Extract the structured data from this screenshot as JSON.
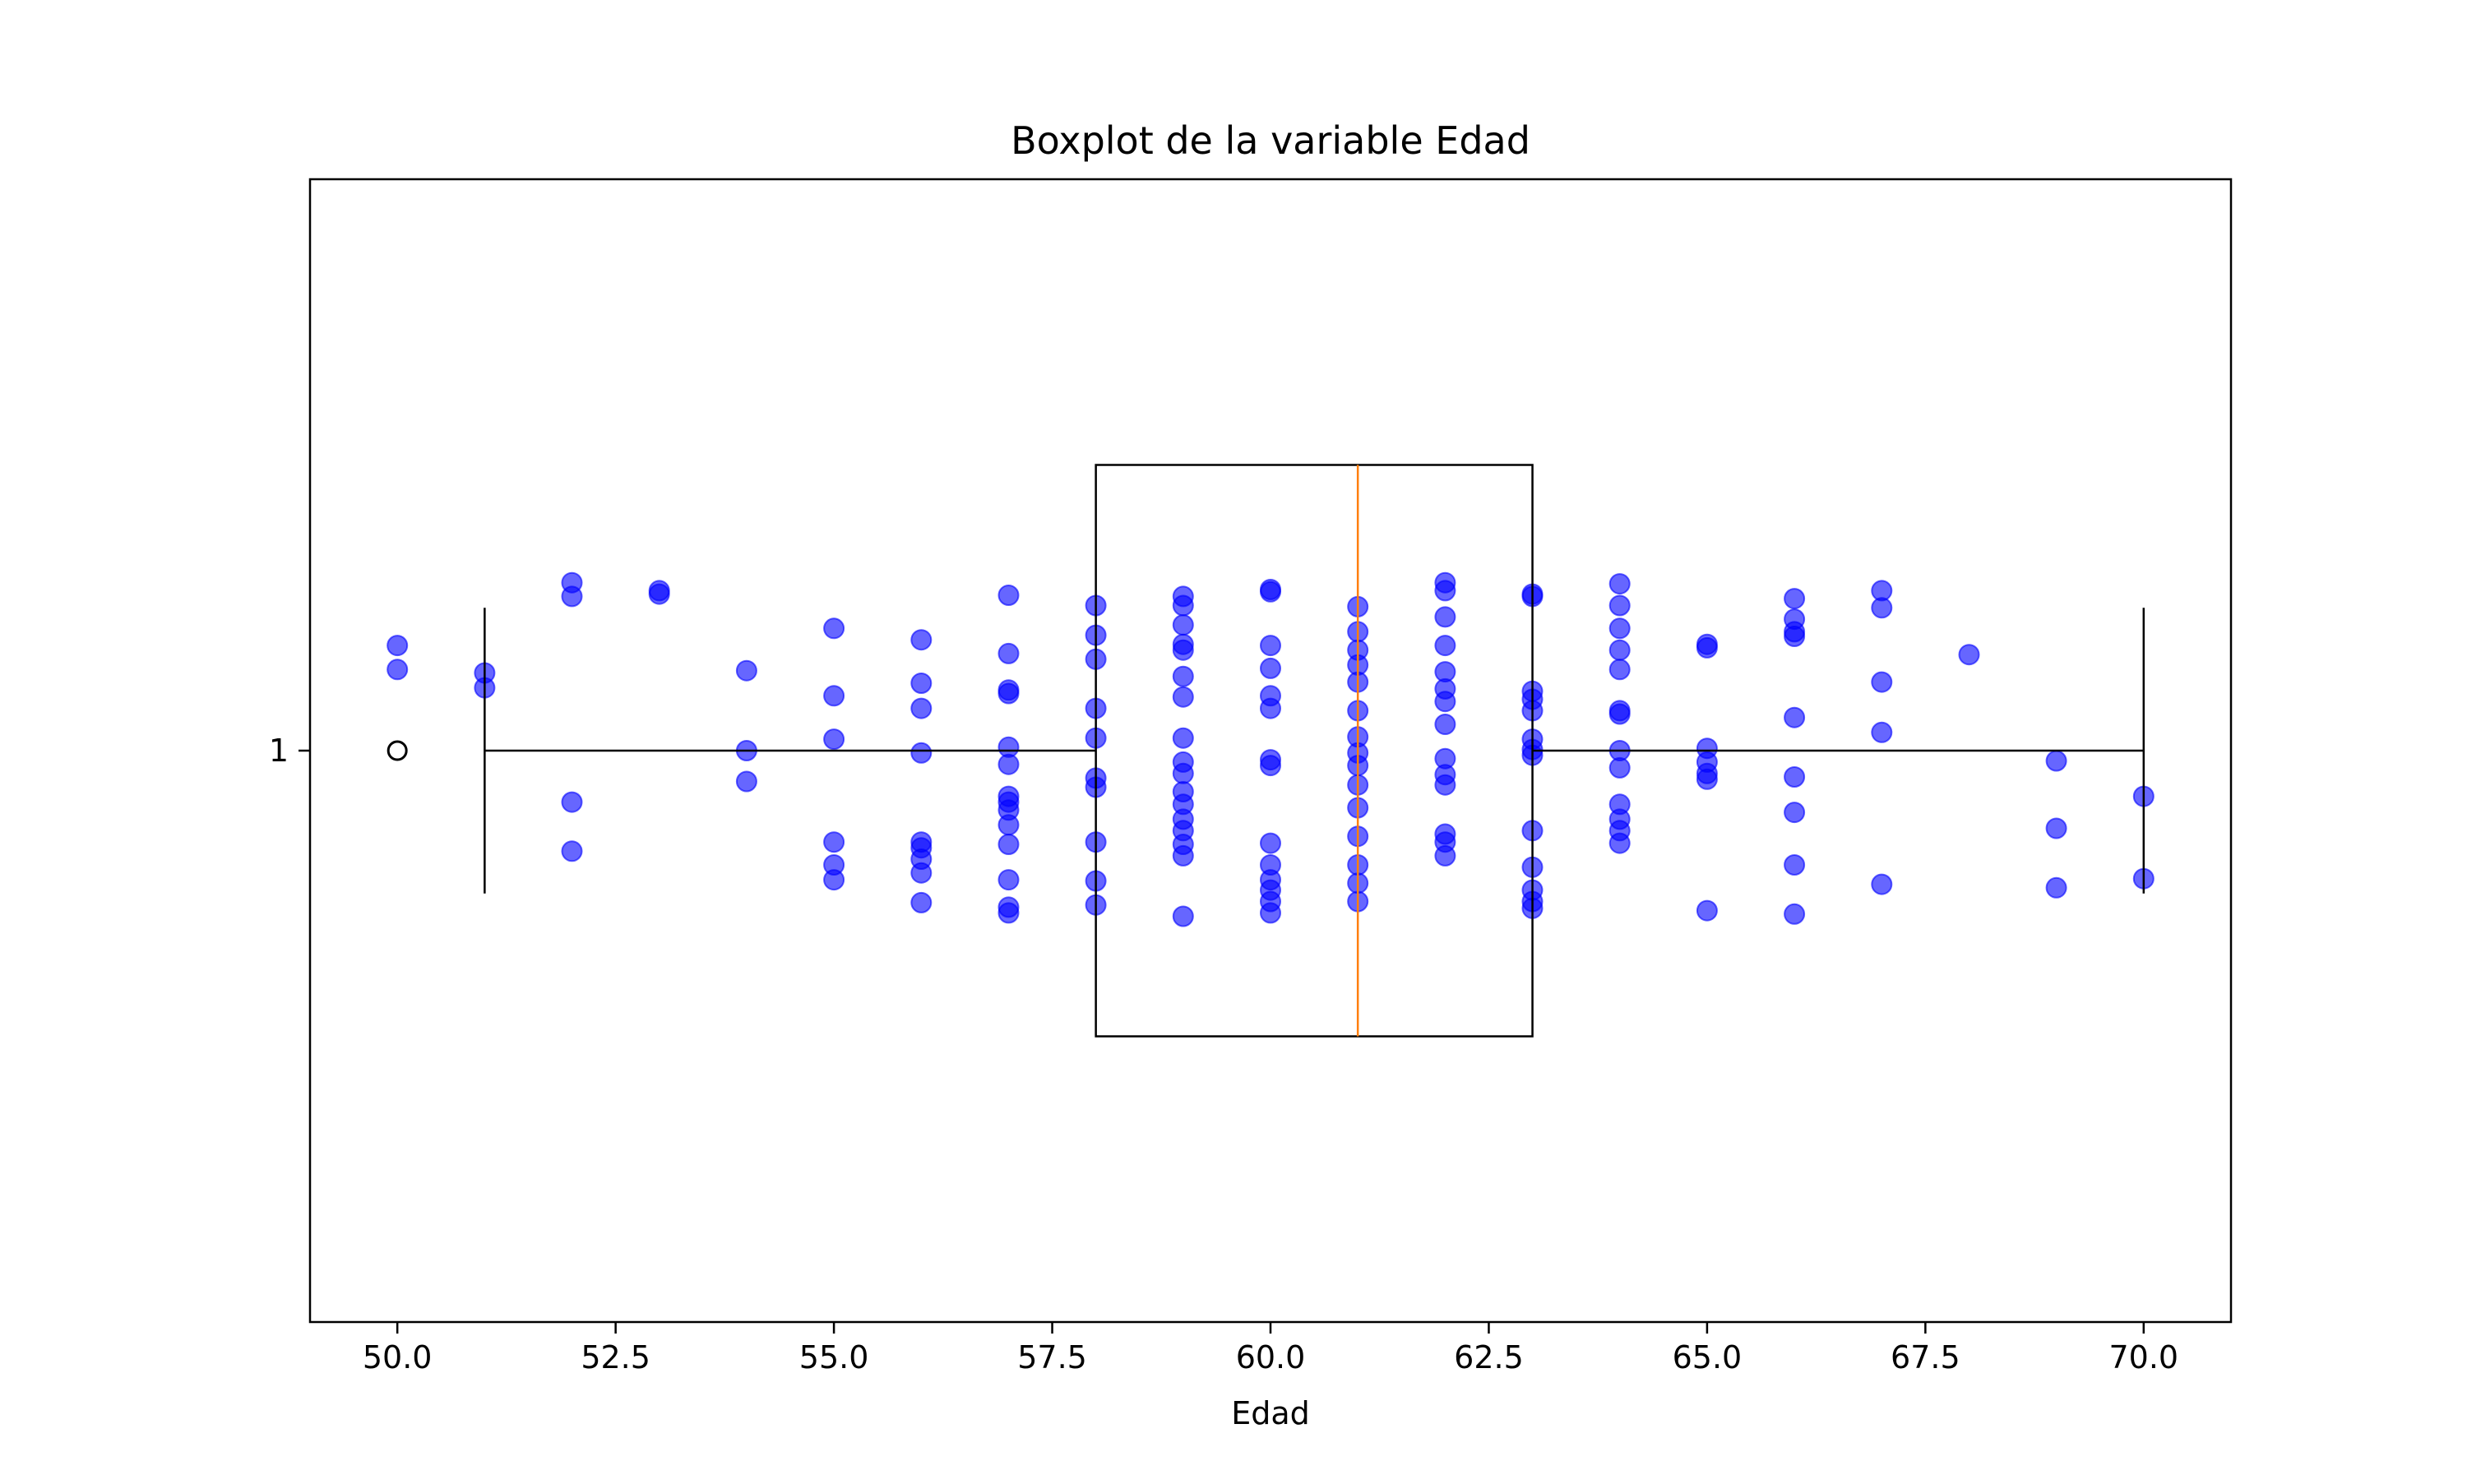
{
  "chart_data": {
    "type": "boxplot",
    "title": "Boxplot de la variable Edad",
    "xlabel": "Edad",
    "ylabel": "",
    "orientation": "horizontal",
    "xlim": [
      49.0,
      71.0
    ],
    "ylim": [
      0.5,
      1.5
    ],
    "x_ticks": [
      50.0,
      52.5,
      55.0,
      57.5,
      60.0,
      62.5,
      65.0,
      67.5,
      70.0
    ],
    "x_tick_labels": [
      "50.0",
      "52.5",
      "55.0",
      "57.5",
      "60.0",
      "62.5",
      "65.0",
      "67.5",
      "70.0"
    ],
    "y_ticks": [
      1
    ],
    "y_tick_labels": [
      "1"
    ],
    "grid": false,
    "colors": {
      "points": "#0000ff",
      "median": "#ff7f0e",
      "box": "#000000"
    },
    "box": {
      "position": 1,
      "whisker_low": 51,
      "q1": 58,
      "median": 61,
      "q3": 63,
      "whisker_high": 70,
      "outliers": [
        50
      ]
    },
    "points": [
      {
        "x": 50,
        "y": 1.092
      },
      {
        "x": 50,
        "y": 1.071
      },
      {
        "x": 51,
        "y": 1.068
      },
      {
        "x": 51,
        "y": 1.055
      },
      {
        "x": 52,
        "y": 1.147
      },
      {
        "x": 52,
        "y": 1.135
      },
      {
        "x": 52,
        "y": 0.955
      },
      {
        "x": 52,
        "y": 0.912
      },
      {
        "x": 53,
        "y": 1.14
      },
      {
        "x": 53,
        "y": 1.137
      },
      {
        "x": 54,
        "y": 1.07
      },
      {
        "x": 54,
        "y": 1.0
      },
      {
        "x": 54,
        "y": 0.973
      },
      {
        "x": 55,
        "y": 1.107
      },
      {
        "x": 55,
        "y": 1.048
      },
      {
        "x": 55,
        "y": 1.01
      },
      {
        "x": 55,
        "y": 0.92
      },
      {
        "x": 55,
        "y": 0.9
      },
      {
        "x": 55,
        "y": 0.887
      },
      {
        "x": 56,
        "y": 1.097
      },
      {
        "x": 56,
        "y": 1.059
      },
      {
        "x": 56,
        "y": 1.037
      },
      {
        "x": 56,
        "y": 0.998
      },
      {
        "x": 56,
        "y": 0.92
      },
      {
        "x": 56,
        "y": 0.915
      },
      {
        "x": 56,
        "y": 0.905
      },
      {
        "x": 56,
        "y": 0.893
      },
      {
        "x": 56,
        "y": 0.867
      },
      {
        "x": 57,
        "y": 1.136
      },
      {
        "x": 57,
        "y": 1.085
      },
      {
        "x": 57,
        "y": 1.053
      },
      {
        "x": 57,
        "y": 1.05
      },
      {
        "x": 57,
        "y": 1.003
      },
      {
        "x": 57,
        "y": 0.988
      },
      {
        "x": 57,
        "y": 0.96
      },
      {
        "x": 57,
        "y": 0.955
      },
      {
        "x": 57,
        "y": 0.948
      },
      {
        "x": 57,
        "y": 0.935
      },
      {
        "x": 57,
        "y": 0.918
      },
      {
        "x": 57,
        "y": 0.887
      },
      {
        "x": 57,
        "y": 0.863
      },
      {
        "x": 57,
        "y": 0.858
      },
      {
        "x": 58,
        "y": 1.127
      },
      {
        "x": 58,
        "y": 1.101
      },
      {
        "x": 58,
        "y": 1.08
      },
      {
        "x": 58,
        "y": 1.037
      },
      {
        "x": 58,
        "y": 1.011
      },
      {
        "x": 58,
        "y": 0.976
      },
      {
        "x": 58,
        "y": 0.968
      },
      {
        "x": 58,
        "y": 0.92
      },
      {
        "x": 58,
        "y": 0.886
      },
      {
        "x": 58,
        "y": 0.865
      },
      {
        "x": 59,
        "y": 1.135
      },
      {
        "x": 59,
        "y": 1.127
      },
      {
        "x": 59,
        "y": 1.11
      },
      {
        "x": 59,
        "y": 1.093
      },
      {
        "x": 59,
        "y": 1.088
      },
      {
        "x": 59,
        "y": 1.065
      },
      {
        "x": 59,
        "y": 1.047
      },
      {
        "x": 59,
        "y": 1.011
      },
      {
        "x": 59,
        "y": 0.99
      },
      {
        "x": 59,
        "y": 0.98
      },
      {
        "x": 59,
        "y": 0.964
      },
      {
        "x": 59,
        "y": 0.953
      },
      {
        "x": 59,
        "y": 0.94
      },
      {
        "x": 59,
        "y": 0.93
      },
      {
        "x": 59,
        "y": 0.918
      },
      {
        "x": 59,
        "y": 0.908
      },
      {
        "x": 59,
        "y": 0.855
      },
      {
        "x": 60,
        "y": 1.141
      },
      {
        "x": 60,
        "y": 1.139
      },
      {
        "x": 60,
        "y": 1.092
      },
      {
        "x": 60,
        "y": 1.072
      },
      {
        "x": 60,
        "y": 1.048
      },
      {
        "x": 60,
        "y": 1.037
      },
      {
        "x": 60,
        "y": 0.992
      },
      {
        "x": 60,
        "y": 0.987
      },
      {
        "x": 60,
        "y": 0.919
      },
      {
        "x": 60,
        "y": 0.9
      },
      {
        "x": 60,
        "y": 0.887
      },
      {
        "x": 60,
        "y": 0.878
      },
      {
        "x": 60,
        "y": 0.868
      },
      {
        "x": 60,
        "y": 0.858
      },
      {
        "x": 61,
        "y": 1.126
      },
      {
        "x": 61,
        "y": 1.104
      },
      {
        "x": 61,
        "y": 1.088
      },
      {
        "x": 61,
        "y": 1.075
      },
      {
        "x": 61,
        "y": 1.06
      },
      {
        "x": 61,
        "y": 1.035
      },
      {
        "x": 61,
        "y": 1.012
      },
      {
        "x": 61,
        "y": 0.998
      },
      {
        "x": 61,
        "y": 0.987
      },
      {
        "x": 61,
        "y": 0.97
      },
      {
        "x": 61,
        "y": 0.95
      },
      {
        "x": 61,
        "y": 0.925
      },
      {
        "x": 61,
        "y": 0.9
      },
      {
        "x": 61,
        "y": 0.884
      },
      {
        "x": 61,
        "y": 0.868
      },
      {
        "x": 62,
        "y": 1.147
      },
      {
        "x": 62,
        "y": 1.14
      },
      {
        "x": 62,
        "y": 1.117
      },
      {
        "x": 62,
        "y": 1.092
      },
      {
        "x": 62,
        "y": 1.069
      },
      {
        "x": 62,
        "y": 1.054
      },
      {
        "x": 62,
        "y": 1.043
      },
      {
        "x": 62,
        "y": 1.023
      },
      {
        "x": 62,
        "y": 0.993
      },
      {
        "x": 62,
        "y": 0.979
      },
      {
        "x": 62,
        "y": 0.97
      },
      {
        "x": 62,
        "y": 0.927
      },
      {
        "x": 62,
        "y": 0.92
      },
      {
        "x": 62,
        "y": 0.908
      },
      {
        "x": 63,
        "y": 1.137
      },
      {
        "x": 63,
        "y": 1.135
      },
      {
        "x": 63,
        "y": 1.052
      },
      {
        "x": 63,
        "y": 1.045
      },
      {
        "x": 63,
        "y": 1.035
      },
      {
        "x": 63,
        "y": 1.01
      },
      {
        "x": 63,
        "y": 1.001
      },
      {
        "x": 63,
        "y": 0.996
      },
      {
        "x": 63,
        "y": 0.93
      },
      {
        "x": 63,
        "y": 0.898
      },
      {
        "x": 63,
        "y": 0.878
      },
      {
        "x": 63,
        "y": 0.868
      },
      {
        "x": 63,
        "y": 0.862
      },
      {
        "x": 64,
        "y": 1.146
      },
      {
        "x": 64,
        "y": 1.127
      },
      {
        "x": 64,
        "y": 1.107
      },
      {
        "x": 64,
        "y": 1.088
      },
      {
        "x": 64,
        "y": 1.071
      },
      {
        "x": 64,
        "y": 1.035
      },
      {
        "x": 64,
        "y": 1.032
      },
      {
        "x": 64,
        "y": 1.0
      },
      {
        "x": 64,
        "y": 0.985
      },
      {
        "x": 64,
        "y": 0.953
      },
      {
        "x": 64,
        "y": 0.94
      },
      {
        "x": 64,
        "y": 0.93
      },
      {
        "x": 64,
        "y": 0.919
      },
      {
        "x": 65,
        "y": 1.093
      },
      {
        "x": 65,
        "y": 1.09
      },
      {
        "x": 65,
        "y": 1.002
      },
      {
        "x": 65,
        "y": 0.99
      },
      {
        "x": 65,
        "y": 0.98
      },
      {
        "x": 65,
        "y": 0.975
      },
      {
        "x": 65,
        "y": 0.86
      },
      {
        "x": 66,
        "y": 1.133
      },
      {
        "x": 66,
        "y": 1.115
      },
      {
        "x": 66,
        "y": 1.104
      },
      {
        "x": 66,
        "y": 1.1
      },
      {
        "x": 66,
        "y": 1.029
      },
      {
        "x": 66,
        "y": 0.977
      },
      {
        "x": 66,
        "y": 0.946
      },
      {
        "x": 66,
        "y": 0.9
      },
      {
        "x": 66,
        "y": 0.857
      },
      {
        "x": 67,
        "y": 1.14
      },
      {
        "x": 67,
        "y": 1.125
      },
      {
        "x": 67,
        "y": 1.06
      },
      {
        "x": 67,
        "y": 1.016
      },
      {
        "x": 67,
        "y": 0.883
      },
      {
        "x": 68,
        "y": 1.084
      },
      {
        "x": 69,
        "y": 0.991
      },
      {
        "x": 69,
        "y": 0.932
      },
      {
        "x": 69,
        "y": 0.88
      },
      {
        "x": 70,
        "y": 0.96
      },
      {
        "x": 70,
        "y": 0.888
      }
    ]
  }
}
